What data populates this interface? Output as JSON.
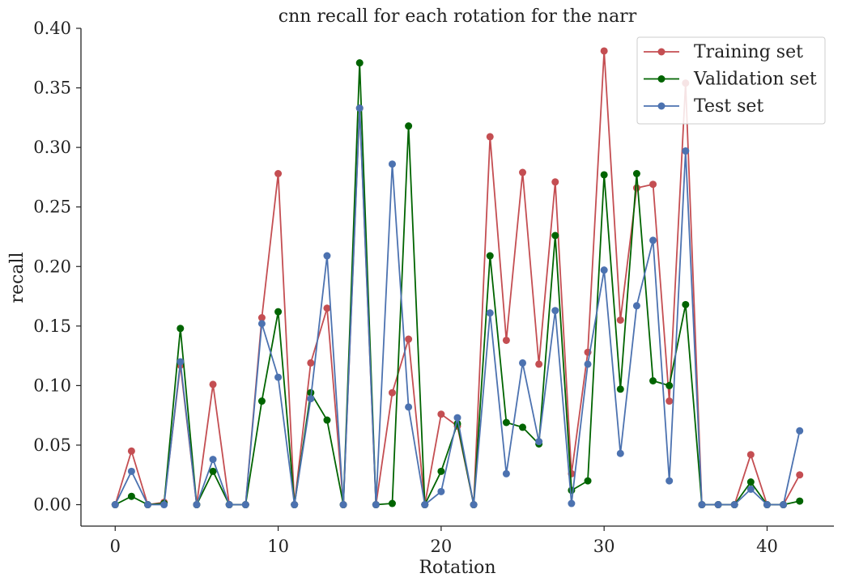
{
  "chart_data": {
    "type": "line",
    "title": "cnn recall for each rotation for the narr",
    "xlabel": "Rotation",
    "ylabel": "recall",
    "xlim": [
      -2.1,
      44.1
    ],
    "ylim": [
      -0.018,
      0.4
    ],
    "xticks": [
      0,
      10,
      20,
      30,
      40
    ],
    "yticks": [
      0.0,
      0.05,
      0.1,
      0.15,
      0.2,
      0.25,
      0.3,
      0.35,
      0.4
    ],
    "ytick_labels": [
      "0.00",
      "0.05",
      "0.10",
      "0.15",
      "0.20",
      "0.25",
      "0.30",
      "0.35",
      "0.40"
    ],
    "grid": false,
    "legend_position": "top-right",
    "x": [
      0,
      1,
      2,
      3,
      4,
      5,
      6,
      7,
      8,
      9,
      10,
      11,
      12,
      13,
      14,
      15,
      16,
      17,
      18,
      19,
      20,
      21,
      22,
      23,
      24,
      25,
      26,
      27,
      28,
      29,
      30,
      31,
      32,
      33,
      34,
      35,
      36,
      37,
      38,
      39,
      40,
      41,
      42
    ],
    "series": [
      {
        "name": "Training set",
        "color": "#c44e52",
        "values": [
          0.0,
          0.045,
          0.0,
          0.002,
          0.117,
          0.0,
          0.101,
          0.0,
          0.0,
          0.157,
          0.278,
          0.0,
          0.119,
          0.165,
          0.0,
          0.333,
          0.0,
          0.094,
          0.139,
          0.0,
          0.076,
          0.066,
          0.0,
          0.309,
          0.138,
          0.279,
          0.118,
          0.271,
          0.026,
          0.128,
          0.381,
          0.155,
          0.266,
          0.269,
          0.087,
          0.354,
          0.0,
          0.0,
          0.0,
          0.042,
          0.0,
          0.0,
          0.025
        ]
      },
      {
        "name": "Validation set",
        "color": "#006400",
        "values": [
          0.0,
          0.007,
          0.0,
          0.001,
          0.148,
          0.0,
          0.028,
          0.0,
          0.0,
          0.087,
          0.162,
          0.0,
          0.094,
          0.071,
          0.0,
          0.371,
          0.0,
          0.001,
          0.318,
          0.0,
          0.028,
          0.068,
          0.0,
          0.209,
          0.069,
          0.065,
          0.051,
          0.226,
          0.012,
          0.02,
          0.277,
          0.097,
          0.278,
          0.104,
          0.1,
          0.168,
          0.0,
          0.0,
          0.0,
          0.019,
          0.0,
          0.0,
          0.003
        ]
      },
      {
        "name": "Test set",
        "color": "#4c72b0",
        "values": [
          0.0,
          0.028,
          0.0,
          0.0,
          0.12,
          0.0,
          0.038,
          0.0,
          0.0,
          0.152,
          0.107,
          0.0,
          0.089,
          0.209,
          0.0,
          0.333,
          0.0,
          0.286,
          0.082,
          0.0,
          0.011,
          0.073,
          0.0,
          0.161,
          0.026,
          0.119,
          0.053,
          0.163,
          0.001,
          0.118,
          0.197,
          0.043,
          0.167,
          0.222,
          0.02,
          0.297,
          0.0,
          0.0,
          0.0,
          0.013,
          0.0,
          0.0,
          0.062
        ]
      }
    ]
  }
}
